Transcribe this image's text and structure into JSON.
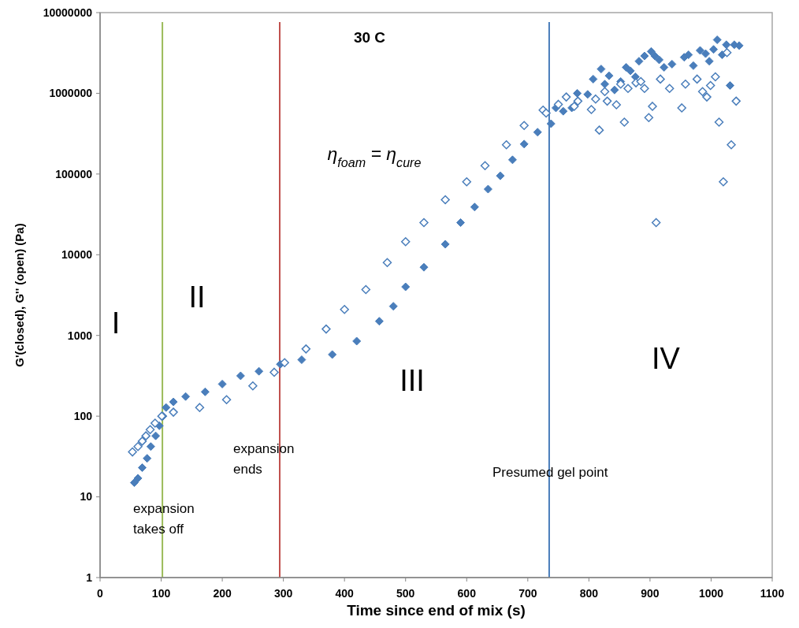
{
  "chart_data": {
    "type": "scatter",
    "title": "30 C",
    "xlabel": "Time  since end of mix (s)",
    "ylabel": "G'(closed), G'' (open) (Pa)",
    "log": "y",
    "xlim": [
      0,
      1100
    ],
    "xticks": [
      0,
      100,
      200,
      300,
      400,
      500,
      600,
      700,
      800,
      900,
      1000,
      1100
    ],
    "ylim": [
      1,
      10000000
    ],
    "yticks": [
      1,
      10,
      100,
      1000,
      10000,
      100000,
      1000000,
      10000000
    ],
    "grid": false,
    "marker": "diamond",
    "series": [
      {
        "color": "#4a7ebb",
        "x": [
          56,
          62,
          69,
          77,
          83,
          91,
          97,
          103,
          108,
          120,
          140,
          172,
          200,
          230,
          260,
          295,
          330,
          380,
          420,
          457,
          480,
          500,
          530,
          565,
          590,
          613,
          635,
          655,
          675,
          694,
          716,
          738,
          746,
          758,
          772,
          781,
          798,
          807,
          820,
          826,
          833,
          842,
          852,
          861,
          868,
          876,
          882,
          891,
          902,
          908,
          915,
          923,
          936,
          956,
          963,
          971,
          982,
          991,
          997,
          1004,
          1010,
          1018,
          1025,
          1031,
          1038,
          1046
        ],
        "values": [
          15,
          17,
          23,
          30,
          42,
          57,
          76,
          100,
          128,
          150,
          175,
          200,
          250,
          316,
          360,
          440,
          500,
          580,
          850,
          1500,
          2300,
          4000,
          7000,
          13500,
          25000,
          39000,
          65000,
          95000,
          150000,
          235000,
          330000,
          420000,
          660000,
          600000,
          660000,
          1000000,
          970000,
          1500000,
          2000000,
          1300000,
          1650000,
          1100000,
          1400000,
          2100000,
          1900000,
          1600000,
          2500000,
          2900000,
          3300000,
          2900000,
          2600000,
          2100000,
          2300000,
          2800000,
          3000000,
          2200000,
          3400000,
          3100000,
          2500000,
          3500000,
          4600000,
          3000000,
          4000000,
          1250000,
          4000000,
          3900000
        ]
      },
      {
        "color": "#4a7ebb",
        "x": [
          53,
          62,
          69,
          75,
          82,
          90,
          101,
          120,
          163,
          207,
          250,
          285,
          302,
          337,
          370,
          400,
          435,
          470,
          500,
          530,
          565,
          600,
          630,
          665,
          694,
          725,
          730,
          750,
          763,
          776,
          782,
          804,
          811,
          817,
          826,
          830,
          845,
          852,
          858,
          864,
          877,
          885,
          891,
          898,
          904,
          910,
          917,
          932,
          952,
          958,
          977,
          986,
          993,
          999,
          1007,
          1013,
          1020,
          1026,
          1033,
          1041
        ],
        "values": [
          36,
          42,
          49,
          57,
          68,
          82,
          100,
          112,
          128,
          160,
          237,
          350,
          460,
          680,
          1200,
          2100,
          3700,
          8000,
          14500,
          25000,
          48000,
          80000,
          127000,
          230000,
          400000,
          620000,
          570000,
          730000,
          900000,
          690000,
          800000,
          630000,
          850000,
          350000,
          1050000,
          800000,
          720000,
          1300000,
          440000,
          1150000,
          1350000,
          1400000,
          1150000,
          500000,
          690000,
          25000,
          1500000,
          1150000,
          660000,
          1300000,
          1500000,
          1050000,
          900000,
          1250000,
          1600000,
          440000,
          80000,
          3200000,
          230000,
          800000
        ]
      }
    ],
    "ref_lines": [
      {
        "axis": "x",
        "value": 102,
        "color": "#9bbb59",
        "label": "expansion\ntakes off"
      },
      {
        "axis": "x",
        "value": 294,
        "color": "#c0504d",
        "label": "expansion\nends"
      },
      {
        "axis": "x",
        "value": 735,
        "color": "#4a7ebb",
        "label": "Presumed gel point"
      }
    ],
    "annotations": [
      "I",
      "II",
      "III",
      "IV",
      "η$_{foam}$ = η$_{cure}$"
    ]
  }
}
